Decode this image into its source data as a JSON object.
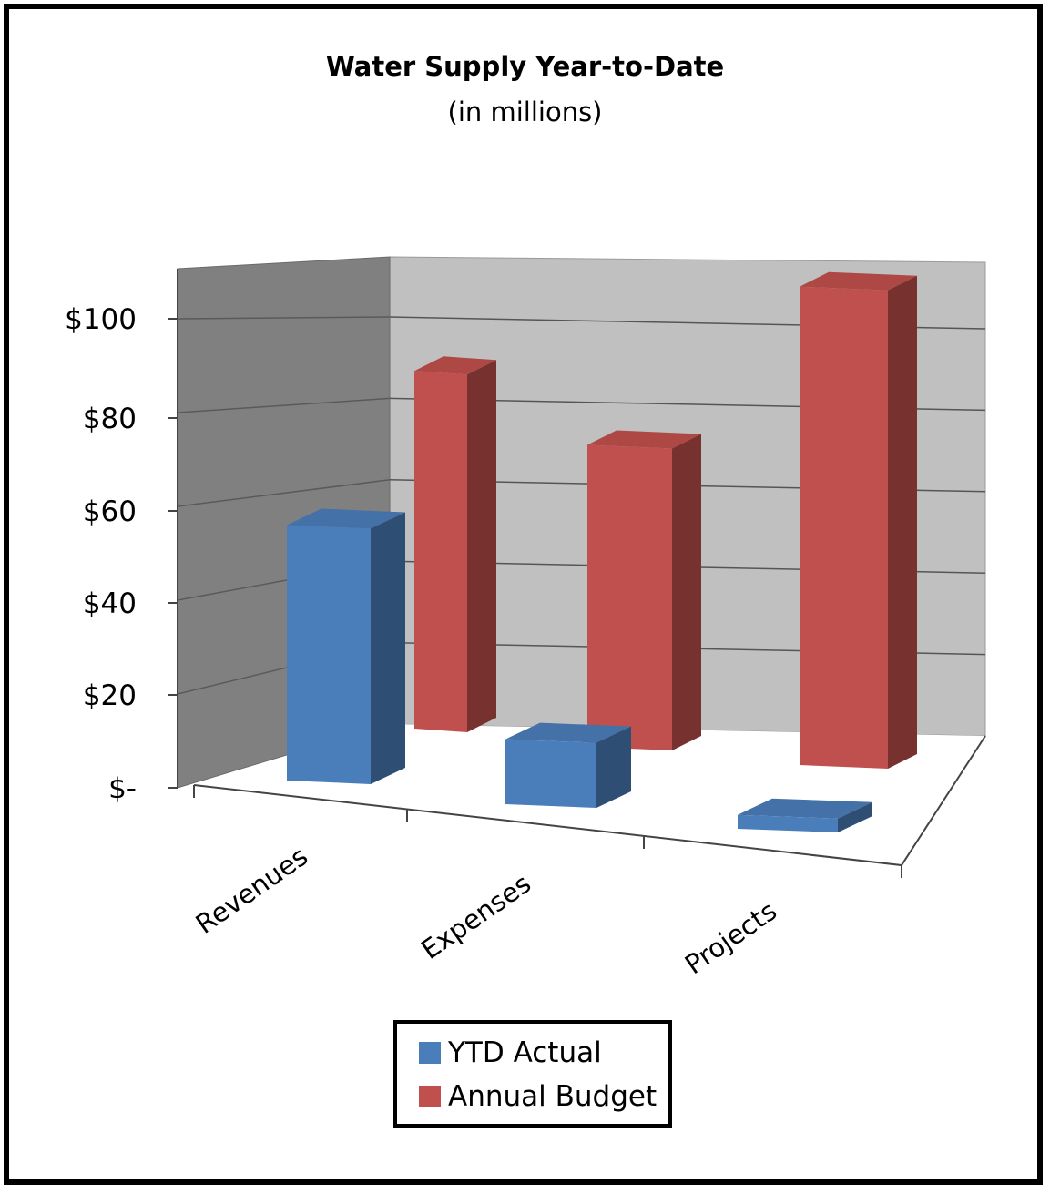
{
  "chart_data": {
    "type": "bar",
    "title": "Water Supply  Year-to-Date",
    "subtitle": "(in millions)",
    "categories": [
      "Revenues",
      "Expenses",
      "Projects"
    ],
    "series": [
      {
        "name": "YTD Actual",
        "values": [
          55,
          14,
          3
        ],
        "color": "#4a7ebb"
      },
      {
        "name": "Annual Budget",
        "values": [
          77,
          65,
          103
        ],
        "color": "#c0504d"
      }
    ],
    "yticks": [
      "$-",
      "$20",
      "$40",
      "$60",
      "$80",
      "$100"
    ],
    "ylim": [
      0,
      110
    ],
    "style": "3d-clustered-column",
    "legend_position": "bottom",
    "grid": true
  }
}
